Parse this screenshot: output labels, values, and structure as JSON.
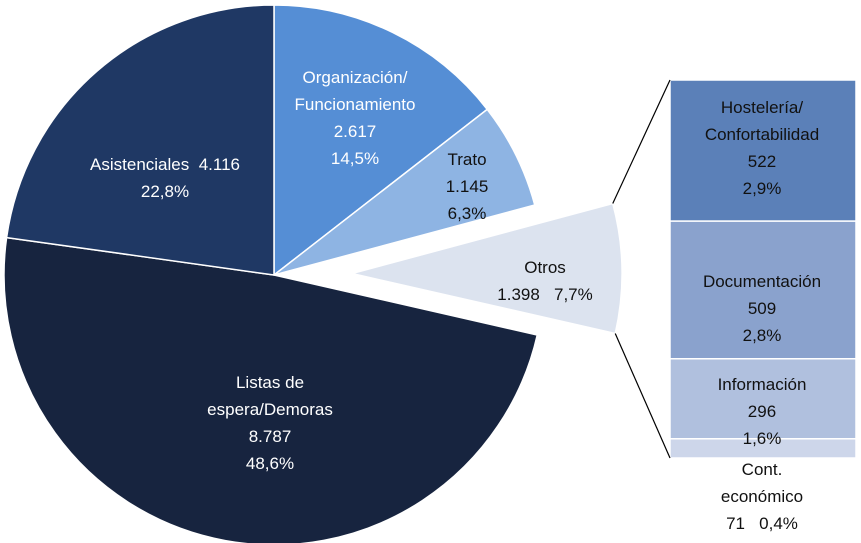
{
  "chart_data": {
    "type": "pie",
    "slices": {
      "names": [
        "Organización/\nFuncionamiento",
        "Trato",
        "Otros",
        "Listas de\nespera/Demoras",
        "Asistenciales"
      ],
      "values": [
        2617,
        1145,
        1398,
        8787,
        4116
      ],
      "value_labels": [
        "2.617",
        "1.145",
        "1.398",
        "8.787",
        "4.116"
      ],
      "percents": [
        14.5,
        6.3,
        7.7,
        48.6,
        22.8
      ],
      "percent_labels": [
        "14,5%",
        "6,3%",
        "7,7%",
        "48,6%",
        "22,8%"
      ],
      "colors": [
        "#558ed5",
        "#8eb4e3",
        "#dce3ef",
        "#17243f",
        "#1f3864"
      ],
      "exploded": [
        false,
        false,
        true,
        false,
        false
      ]
    },
    "bar_of_pie": {
      "names": [
        "Hostelería/\nConfortabilidad",
        "Documentación",
        "Información",
        "Cont. económico"
      ],
      "values": [
        522,
        509,
        296,
        71
      ],
      "percents": [
        2.9,
        2.8,
        1.6,
        0.4
      ],
      "percent_labels": [
        "2,9%",
        "2,8%",
        "1,6%",
        "0,4%"
      ],
      "colors": [
        "#5b80b8",
        "#8aa2cd",
        "#b0c0de",
        "#cdd6ea"
      ]
    }
  }
}
